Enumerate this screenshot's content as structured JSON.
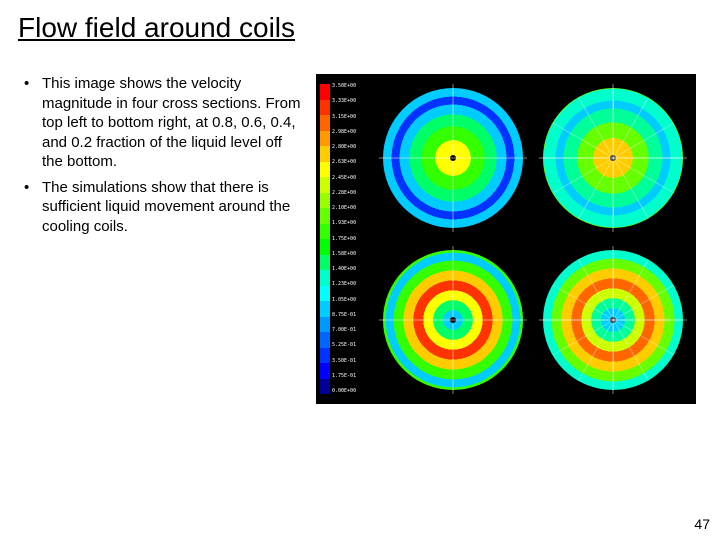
{
  "title": "Flow field around coils",
  "bullets": [
    "This image shows the velocity magnitude in four cross sections. From top left to bottom right, at 0.8, 0.6, 0.4, and 0.2 fraction of the liquid level off the bottom.",
    "The simulations show that there is sufficient liquid movement around the cooling coils."
  ],
  "page_number": "47",
  "figure": {
    "type": "cfd-contour-grid",
    "background": "#000000",
    "panel_size": [
      380,
      330
    ],
    "grid": {
      "rows": 2,
      "cols": 2,
      "gap": 6
    },
    "legend": {
      "labels": [
        "3.50E+00",
        "3.33E+00",
        "3.15E+00",
        "2.98E+00",
        "2.80E+00",
        "2.63E+00",
        "2.45E+00",
        "2.28E+00",
        "2.10E+00",
        "1.93E+00",
        "1.75E+00",
        "1.58E+00",
        "1.40E+00",
        "1.23E+00",
        "1.05E+00",
        "8.75E-01",
        "7.00E-01",
        "5.25E-01",
        "3.50E-01",
        "1.75E-01",
        "0.00E+00"
      ],
      "colors": [
        "#ff0000",
        "#ff3300",
        "#ff6600",
        "#ff9900",
        "#ffcc00",
        "#ffff00",
        "#ccff00",
        "#99ff00",
        "#66ff00",
        "#33ff00",
        "#00ff00",
        "#00ff66",
        "#00ffcc",
        "#00ffff",
        "#00ccff",
        "#0099ff",
        "#0066ff",
        "#0033ff",
        "#0000ff",
        "#000099"
      ],
      "label_fontsize": 5,
      "label_color": "#ffffff"
    },
    "disks": [
      {
        "id": "tl",
        "fraction": 0.8,
        "rings": [
          {
            "stop": 0,
            "color": "#ffff00"
          },
          {
            "stop": 18,
            "color": "#33ff00"
          },
          {
            "stop": 32,
            "color": "#00ff66"
          },
          {
            "stop": 44,
            "color": "#00ccff"
          },
          {
            "stop": 54,
            "color": "#0033ff"
          },
          {
            "stop": 62,
            "color": "#00ccff"
          },
          {
            "stop": 72,
            "color": "#33ff00"
          },
          {
            "stop": 86,
            "color": "#ffcc00"
          },
          {
            "stop": 94,
            "color": "#ff3300"
          },
          {
            "stop": 100,
            "color": "#ff0000"
          }
        ],
        "spokes": false
      },
      {
        "id": "tr",
        "fraction": 0.6,
        "rings": [
          {
            "stop": 0,
            "color": "#ffcc00"
          },
          {
            "stop": 20,
            "color": "#66ff00"
          },
          {
            "stop": 36,
            "color": "#00ff99"
          },
          {
            "stop": 50,
            "color": "#00ccff"
          },
          {
            "stop": 58,
            "color": "#00ffcc"
          },
          {
            "stop": 70,
            "color": "#66ff00"
          },
          {
            "stop": 84,
            "color": "#ffcc00"
          },
          {
            "stop": 100,
            "color": "#99ff00"
          }
        ],
        "spokes": true
      },
      {
        "id": "bl",
        "fraction": 0.4,
        "rings": [
          {
            "stop": 0,
            "color": "#00ccff"
          },
          {
            "stop": 10,
            "color": "#00ff66"
          },
          {
            "stop": 20,
            "color": "#ffff00"
          },
          {
            "stop": 30,
            "color": "#ff3300"
          },
          {
            "stop": 40,
            "color": "#ffcc00"
          },
          {
            "stop": 50,
            "color": "#33ff00"
          },
          {
            "stop": 60,
            "color": "#00ccff"
          },
          {
            "stop": 68,
            "color": "#33ff00"
          },
          {
            "stop": 78,
            "color": "#ffcc00"
          },
          {
            "stop": 88,
            "color": "#ff3300"
          },
          {
            "stop": 100,
            "color": "#ff0000"
          }
        ],
        "spokes": false
      },
      {
        "id": "br",
        "fraction": 0.2,
        "rings": [
          {
            "stop": 0,
            "color": "#00ccff"
          },
          {
            "stop": 12,
            "color": "#00ff99"
          },
          {
            "stop": 22,
            "color": "#ccff00"
          },
          {
            "stop": 32,
            "color": "#ff6600"
          },
          {
            "stop": 42,
            "color": "#ffcc00"
          },
          {
            "stop": 52,
            "color": "#66ff00"
          },
          {
            "stop": 62,
            "color": "#00ffcc"
          },
          {
            "stop": 72,
            "color": "#66ff00"
          },
          {
            "stop": 84,
            "color": "#ffcc00"
          },
          {
            "stop": 100,
            "color": "#33ff00"
          }
        ],
        "spokes": true
      }
    ]
  }
}
